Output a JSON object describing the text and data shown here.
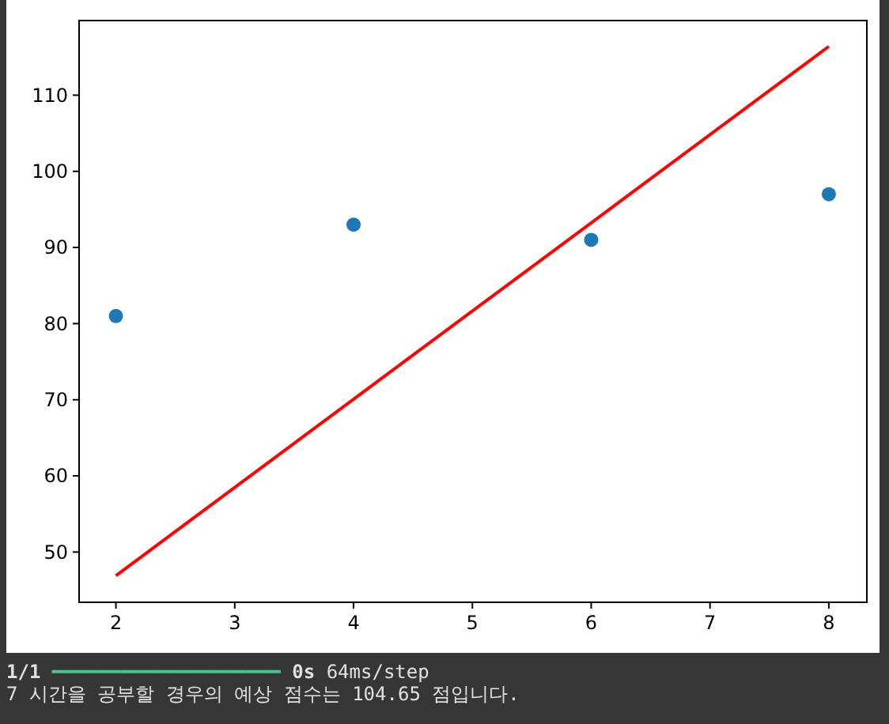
{
  "chart_data": {
    "type": "scatter",
    "series": [
      {
        "color": "#1f77b4",
        "x": [
          2,
          4,
          6,
          8
        ],
        "values": [
          81,
          93,
          91,
          97
        ],
        "marker": "circle"
      },
      {
        "type": "line",
        "color": "#ff0000",
        "x": [
          2,
          8
        ],
        "values": [
          46.9,
          116.4
        ],
        "line_style": "solid"
      }
    ],
    "xlim": [
      1.69,
      8.32
    ],
    "xticks": [
      2,
      3,
      4,
      5,
      6,
      7,
      8
    ],
    "ylim": [
      43.4,
      119.8
    ],
    "yticks": [
      50,
      60,
      70,
      80,
      90,
      100,
      110
    ],
    "grid": false,
    "annotations": [
      "1/1 ━━━━━━━━━━━━━━━━━━━━ 0s 64ms/step",
      "7 시간을 공부할 경우의 예상 점수는 104.65 점입니다."
    ]
  }
}
